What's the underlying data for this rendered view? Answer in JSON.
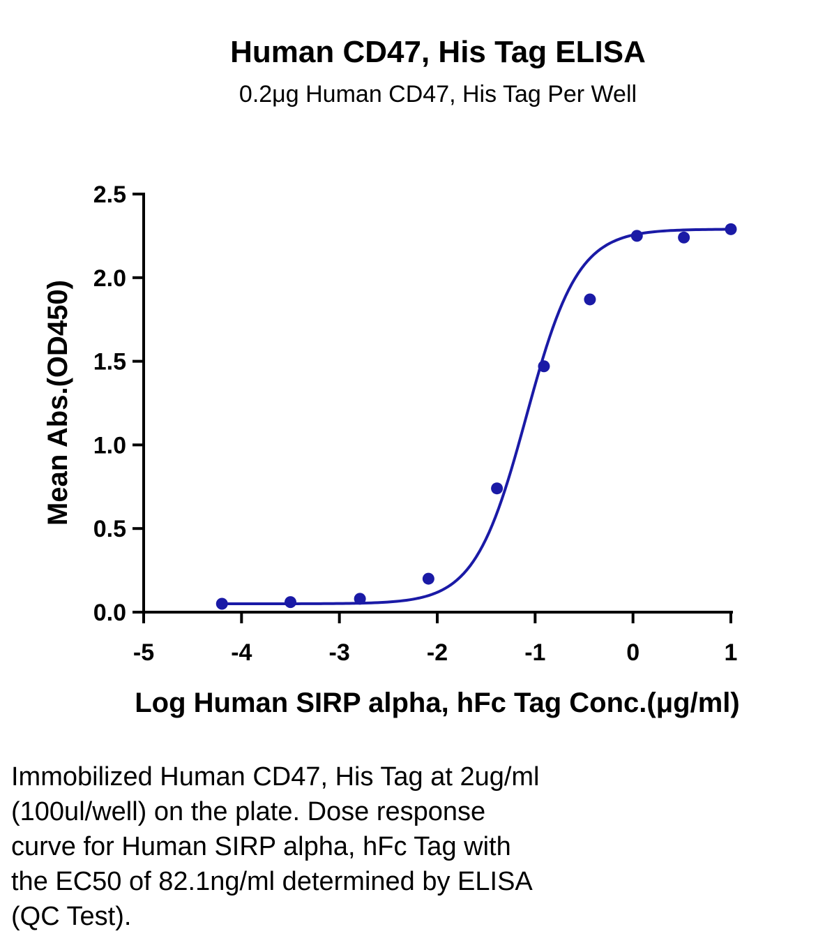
{
  "chart_data": {
    "type": "scatter",
    "title": "Human CD47, His Tag ELISA",
    "subtitle": "0.2μg Human CD47, His Tag Per Well",
    "xlabel": "Log Human SIRP alpha, hFc Tag Conc.(μg/ml)",
    "ylabel": "Mean Abs.(OD450)",
    "xlim": [
      -5,
      1
    ],
    "ylim": [
      0,
      2.5
    ],
    "x_ticks": [
      "-5",
      "-4",
      "-3",
      "-2",
      "-1",
      "0",
      "1"
    ],
    "y_ticks": [
      "0.0",
      "0.5",
      "1.0",
      "1.5",
      "2.0",
      "2.5"
    ],
    "grid": false,
    "series": [
      {
        "points": [
          {
            "x": -4.2,
            "y": 0.05
          },
          {
            "x": -3.5,
            "y": 0.06
          },
          {
            "x": -2.79,
            "y": 0.08
          },
          {
            "x": -2.09,
            "y": 0.2
          },
          {
            "x": -1.39,
            "y": 0.74
          },
          {
            "x": -0.91,
            "y": 1.47
          },
          {
            "x": -0.44,
            "y": 1.87
          },
          {
            "x": 0.04,
            "y": 2.25
          },
          {
            "x": 0.52,
            "y": 2.24
          },
          {
            "x": 1.0,
            "y": 2.29
          }
        ],
        "fit": {
          "model": "4PL",
          "bottom": 0.05,
          "top": 2.29,
          "logEC50": -1.09,
          "hill": 1.65
        },
        "color": "#1a1aa6"
      }
    ]
  },
  "caption_lines": [
    "Immobilized Human CD47, His Tag at 2ug/ml",
    "(100ul/well) on the plate. Dose response",
    "curve for Human SIRP alpha, hFc Tag with",
    "the EC50 of 82.1ng/ml determined by ELISA",
    "(QC Test)."
  ]
}
